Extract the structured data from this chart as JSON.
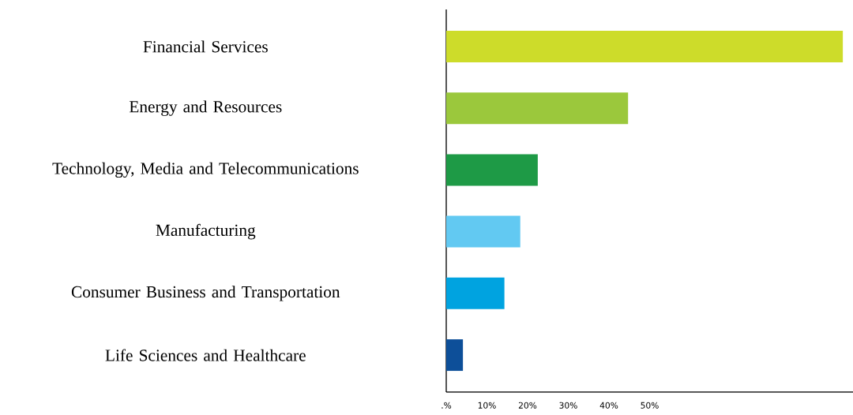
{
  "chart_data": {
    "type": "bar",
    "orientation": "horizontal",
    "categories": [
      "Financial Services",
      "Energy and Resources",
      "Technology, Media and Telecommunications",
      "Manufacturing",
      "Consumer Business and Transportation",
      "Life Sciences and Healthcare"
    ],
    "values": [
      97.5,
      44.7,
      22.5,
      18.2,
      14.3,
      4.1
    ],
    "colors": [
      "#cddc2a",
      "#9bc83c",
      "#1e9a46",
      "#62c9f2",
      "#00a3e0",
      "#0d4f99"
    ],
    "xlim": [
      0,
      100
    ],
    "xticks": [
      {
        "value": 0,
        "label": ".%"
      },
      {
        "value": 10,
        "label": "10%"
      },
      {
        "value": 20,
        "label": "20%"
      },
      {
        "value": 30,
        "label": "30%"
      },
      {
        "value": 40,
        "label": "40%"
      },
      {
        "value": 50,
        "label": "50%"
      }
    ],
    "grid": false
  }
}
